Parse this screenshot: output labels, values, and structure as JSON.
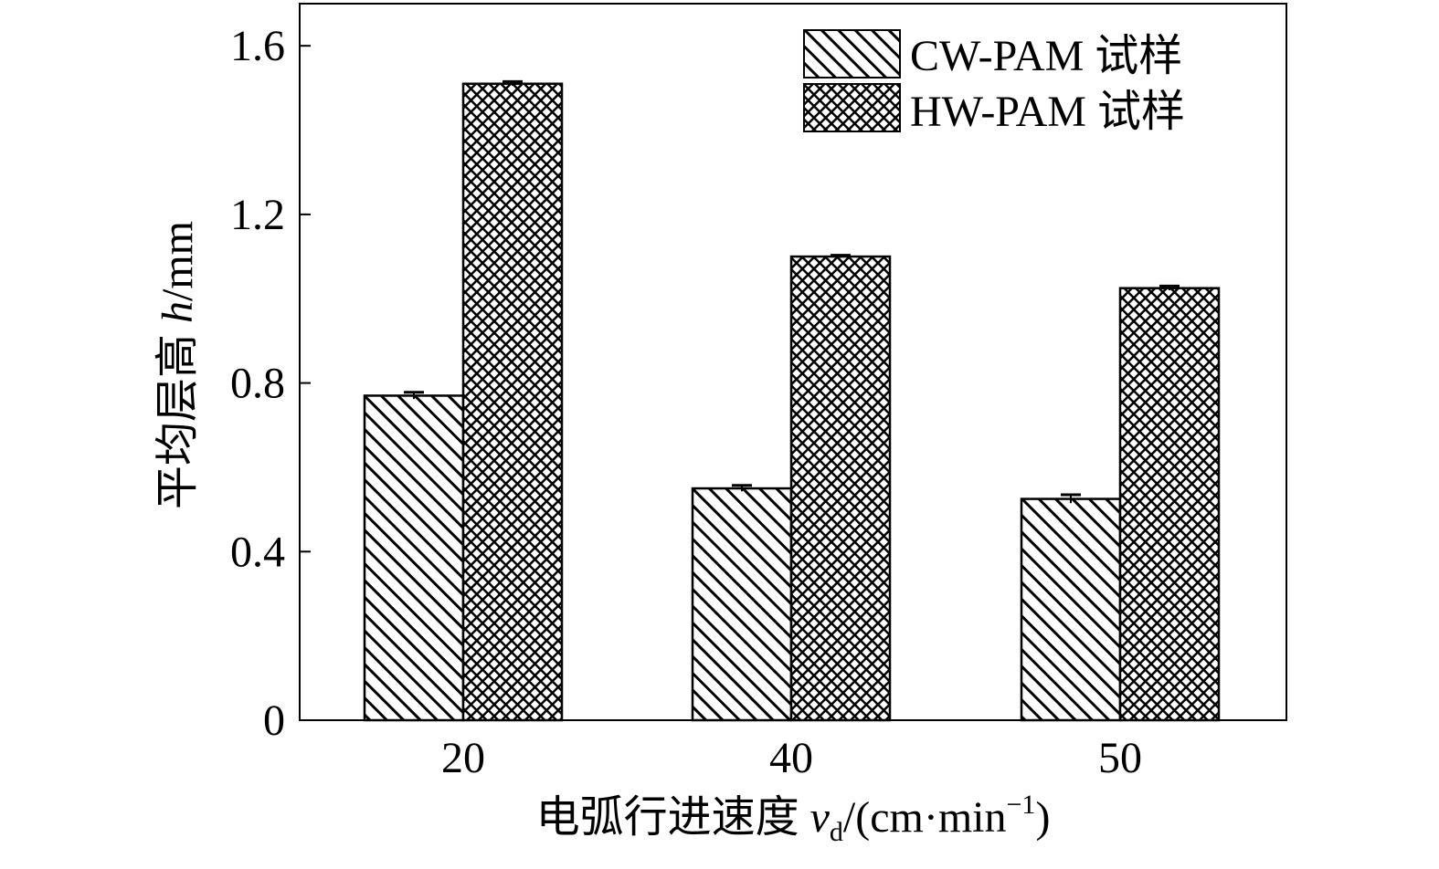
{
  "chart_data": {
    "type": "bar",
    "categories": [
      "20",
      "40",
      "50"
    ],
    "series": [
      {
        "name": "CW-PAM 试样",
        "pattern": "hatch",
        "values": [
          0.77,
          0.55,
          0.525
        ],
        "errors": [
          0.008,
          0.007,
          0.01
        ]
      },
      {
        "name": "HW-PAM 试样",
        "pattern": "crosshatch",
        "values": [
          1.51,
          1.1,
          1.025
        ],
        "errors": [
          0.005,
          0.003,
          0.005
        ]
      }
    ],
    "ylim": [
      0,
      1.7
    ],
    "yticks": [
      "0",
      "0.4",
      "0.8",
      "1.2",
      "1.6"
    ],
    "ylabel_main": "平均层高 ",
    "ylabel_var": "h",
    "ylabel_unit": "/mm",
    "xlabel_main": "电弧行进速度 ",
    "xlabel_var": "v",
    "xlabel_sub": "d",
    "xlabel_unit_open": "/(cm·min",
    "xlabel_sup": "−1",
    "xlabel_unit_close": ")",
    "legend_position": "top-right",
    "colors": {
      "stroke": "#000000",
      "background": "#ffffff"
    }
  }
}
